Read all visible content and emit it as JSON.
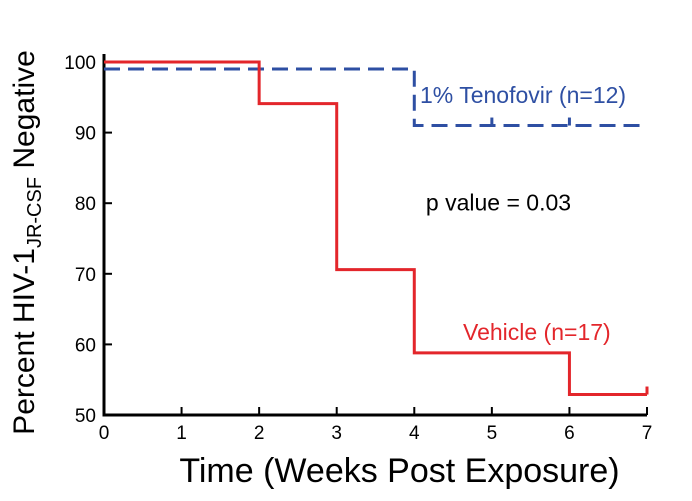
{
  "chart_data": {
    "type": "line",
    "subtype": "step",
    "xlabel": "Time (Weeks Post Exposure)",
    "ylabel": {
      "main": "Percent HIV-1",
      "subscript": "JR-CSF",
      "suffix": " Negative"
    },
    "xlim": [
      0,
      7
    ],
    "ylim": [
      50,
      100
    ],
    "x_ticks": [
      "0",
      "1",
      "2",
      "3",
      "4",
      "5",
      "6",
      "7"
    ],
    "y_ticks": [
      "50",
      "60",
      "70",
      "80",
      "90",
      "100"
    ],
    "grid": false,
    "legend": "inline labels",
    "series": [
      {
        "name": "1% Tenofovir (n=12)",
        "color": "#2e4fa3",
        "line_style": "dashed",
        "x": [
          0,
          4,
          7
        ],
        "y": [
          99,
          91,
          91
        ],
        "censor_marks_x": [
          5,
          6
        ]
      },
      {
        "name": "Vehicle (n=17)",
        "color": "#e3262b",
        "line_style": "solid",
        "x": [
          0,
          2,
          3,
          4,
          6,
          7
        ],
        "y": [
          100,
          94.1,
          70.6,
          58.8,
          52.9,
          52.9
        ],
        "censor_marks_x": [
          7
        ]
      }
    ],
    "annotations": [
      {
        "text": "p value = 0.03",
        "x": 4.15,
        "y": 79
      }
    ]
  }
}
